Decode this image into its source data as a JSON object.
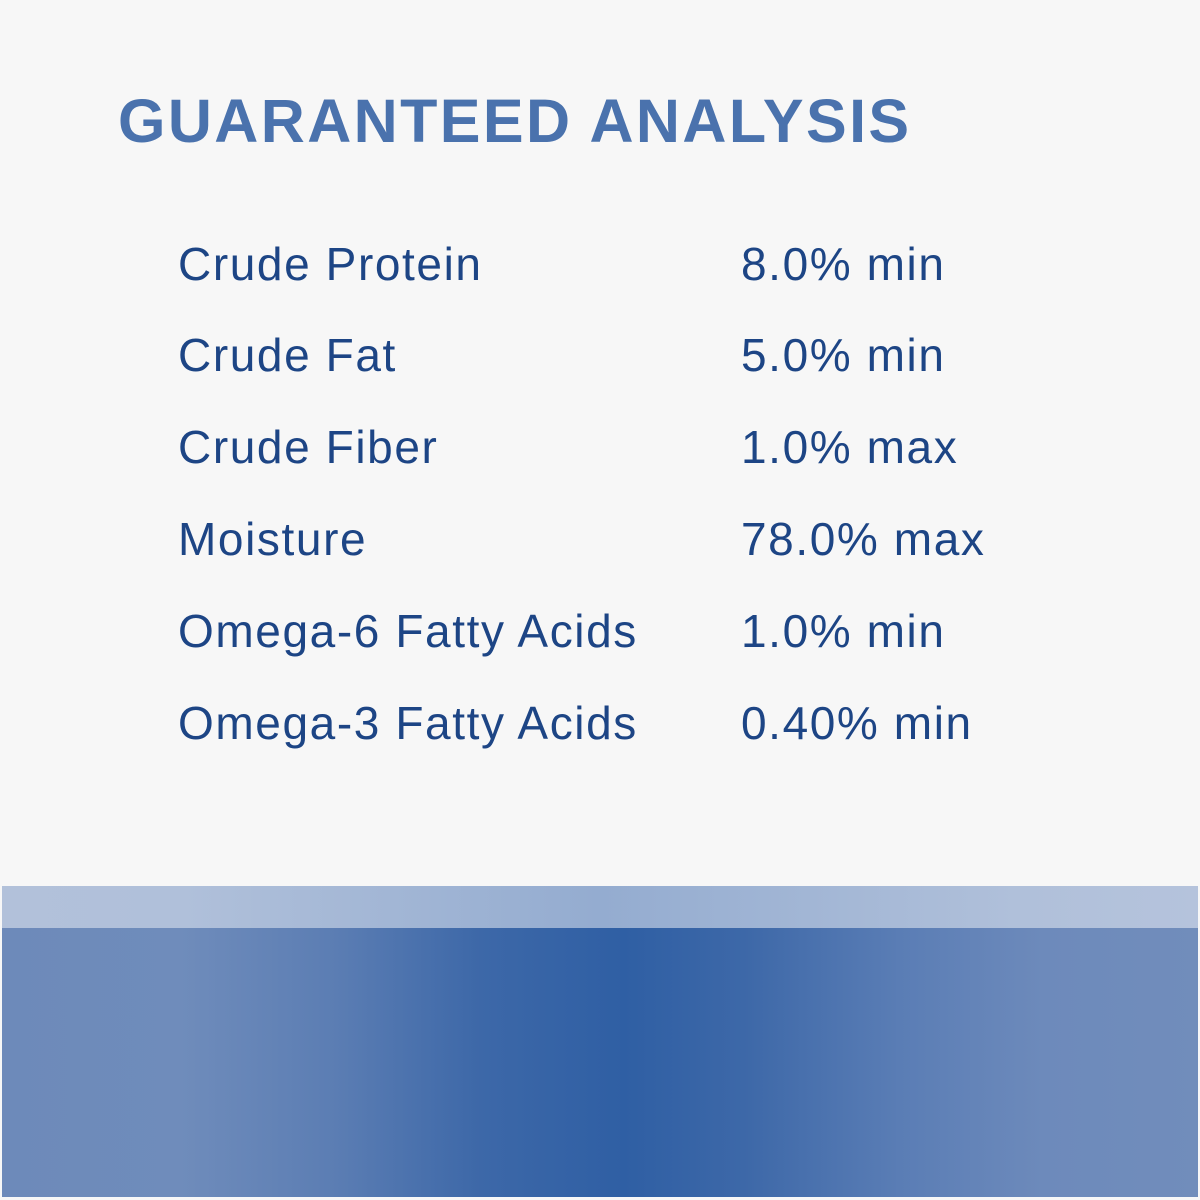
{
  "title": "GUARANTEED ANALYSIS",
  "rows": [
    {
      "label": "Crude Protein",
      "value": "8.0% min"
    },
    {
      "label": "Crude Fat",
      "value": "5.0% min"
    },
    {
      "label": "Crude Fiber",
      "value": "1.0% max"
    },
    {
      "label": "Moisture",
      "value": "78.0% max"
    },
    {
      "label": "Omega-6 Fatty Acids",
      "value": "1.0% min"
    },
    {
      "label": "Omega-3 Fatty Acids",
      "value": "0.40% min"
    }
  ],
  "colors": {
    "title": "#4a72ad",
    "text": "#1d4585",
    "background": "#f7f7f7",
    "band_light": "#94acd0",
    "band_dark": "#2f5fa4"
  }
}
